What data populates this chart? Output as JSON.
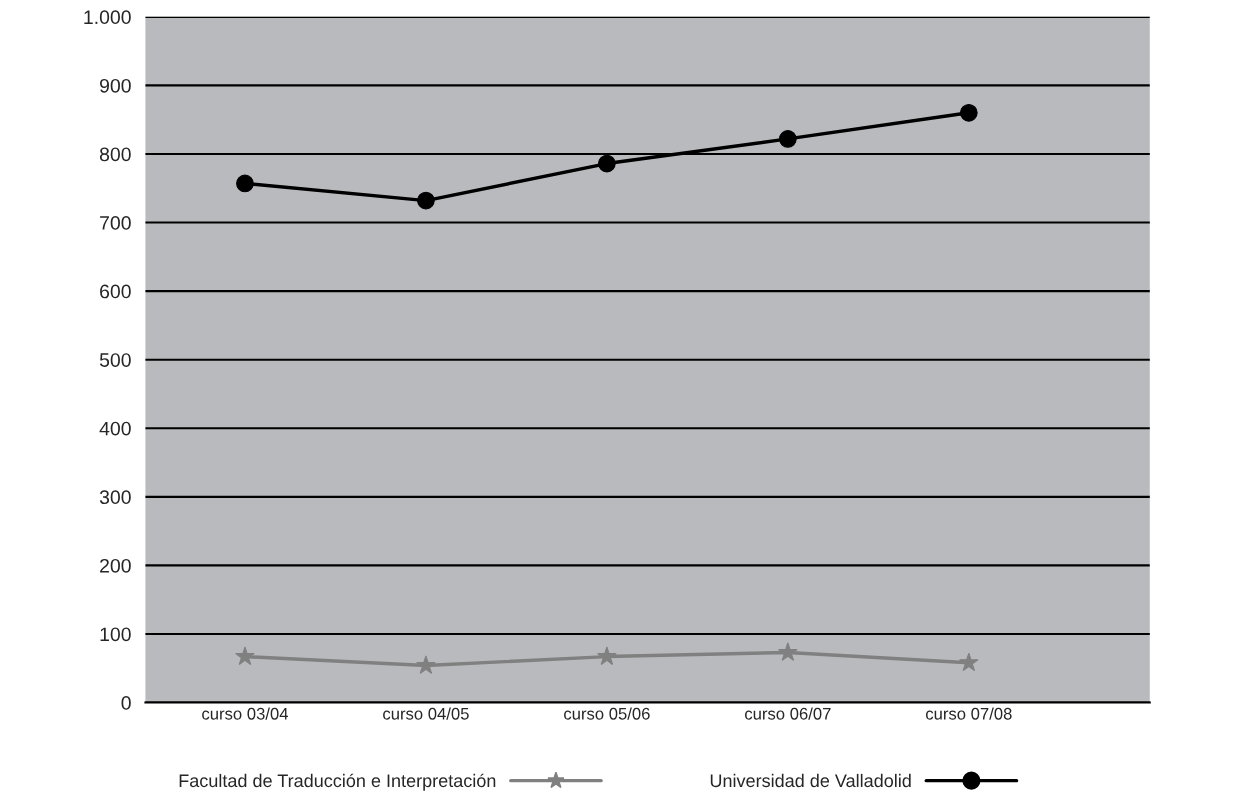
{
  "chart_data": {
    "type": "line",
    "categories": [
      "curso 03/04",
      "curso 04/05",
      "curso 05/06",
      "curso 06/07",
      "curso 07/08"
    ],
    "series": [
      {
        "name": "Facultad de Traducción e Interpretación",
        "color": "#808080",
        "marker": "star",
        "values": [
          67,
          54,
          67,
          73,
          58
        ]
      },
      {
        "name": "Universidad de Valladolid",
        "color": "#000000",
        "marker": "circle",
        "values": [
          757,
          732,
          786,
          822,
          860
        ]
      }
    ],
    "ylim": [
      0,
      1000
    ],
    "yticks": [
      0,
      100,
      200,
      300,
      400,
      500,
      600,
      700,
      800,
      900,
      {
        "value": 1000,
        "label": "1.000"
      }
    ],
    "grid": "y",
    "legend": "bottom",
    "line_style": "solid"
  }
}
